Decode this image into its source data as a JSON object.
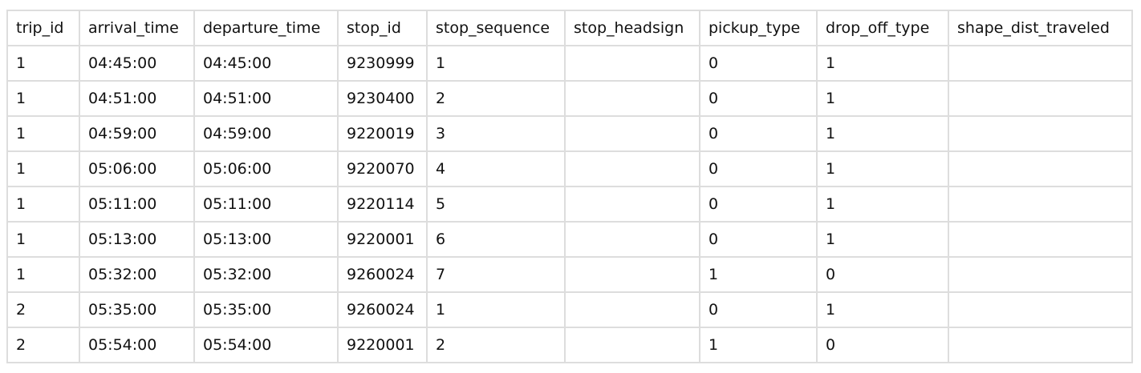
{
  "table": {
    "columns": [
      "trip_id",
      "arrival_time",
      "departure_time",
      "stop_id",
      "stop_sequence",
      "stop_headsign",
      "pickup_type",
      "drop_off_type",
      "shape_dist_traveled"
    ],
    "rows": [
      [
        "1",
        "04:45:00",
        "04:45:00",
        "9230999",
        "1",
        "",
        "0",
        "1",
        ""
      ],
      [
        "1",
        "04:51:00",
        "04:51:00",
        "9230400",
        "2",
        "",
        "0",
        "1",
        ""
      ],
      [
        "1",
        "04:59:00",
        "04:59:00",
        "9220019",
        "3",
        "",
        "0",
        "1",
        ""
      ],
      [
        "1",
        "05:06:00",
        "05:06:00",
        "9220070",
        "4",
        "",
        "0",
        "1",
        ""
      ],
      [
        "1",
        "05:11:00",
        "05:11:00",
        "9220114",
        "5",
        "",
        "0",
        "1",
        ""
      ],
      [
        "1",
        "05:13:00",
        "05:13:00",
        "9220001",
        "6",
        "",
        "0",
        "1",
        ""
      ],
      [
        "1",
        "05:32:00",
        "05:32:00",
        "9260024",
        "7",
        "",
        "1",
        "0",
        ""
      ],
      [
        "2",
        "05:35:00",
        "05:35:00",
        "9260024",
        "1",
        "",
        "0",
        "1",
        ""
      ],
      [
        "2",
        "05:54:00",
        "05:54:00",
        "9220001",
        "2",
        "",
        "1",
        "0",
        ""
      ]
    ]
  }
}
